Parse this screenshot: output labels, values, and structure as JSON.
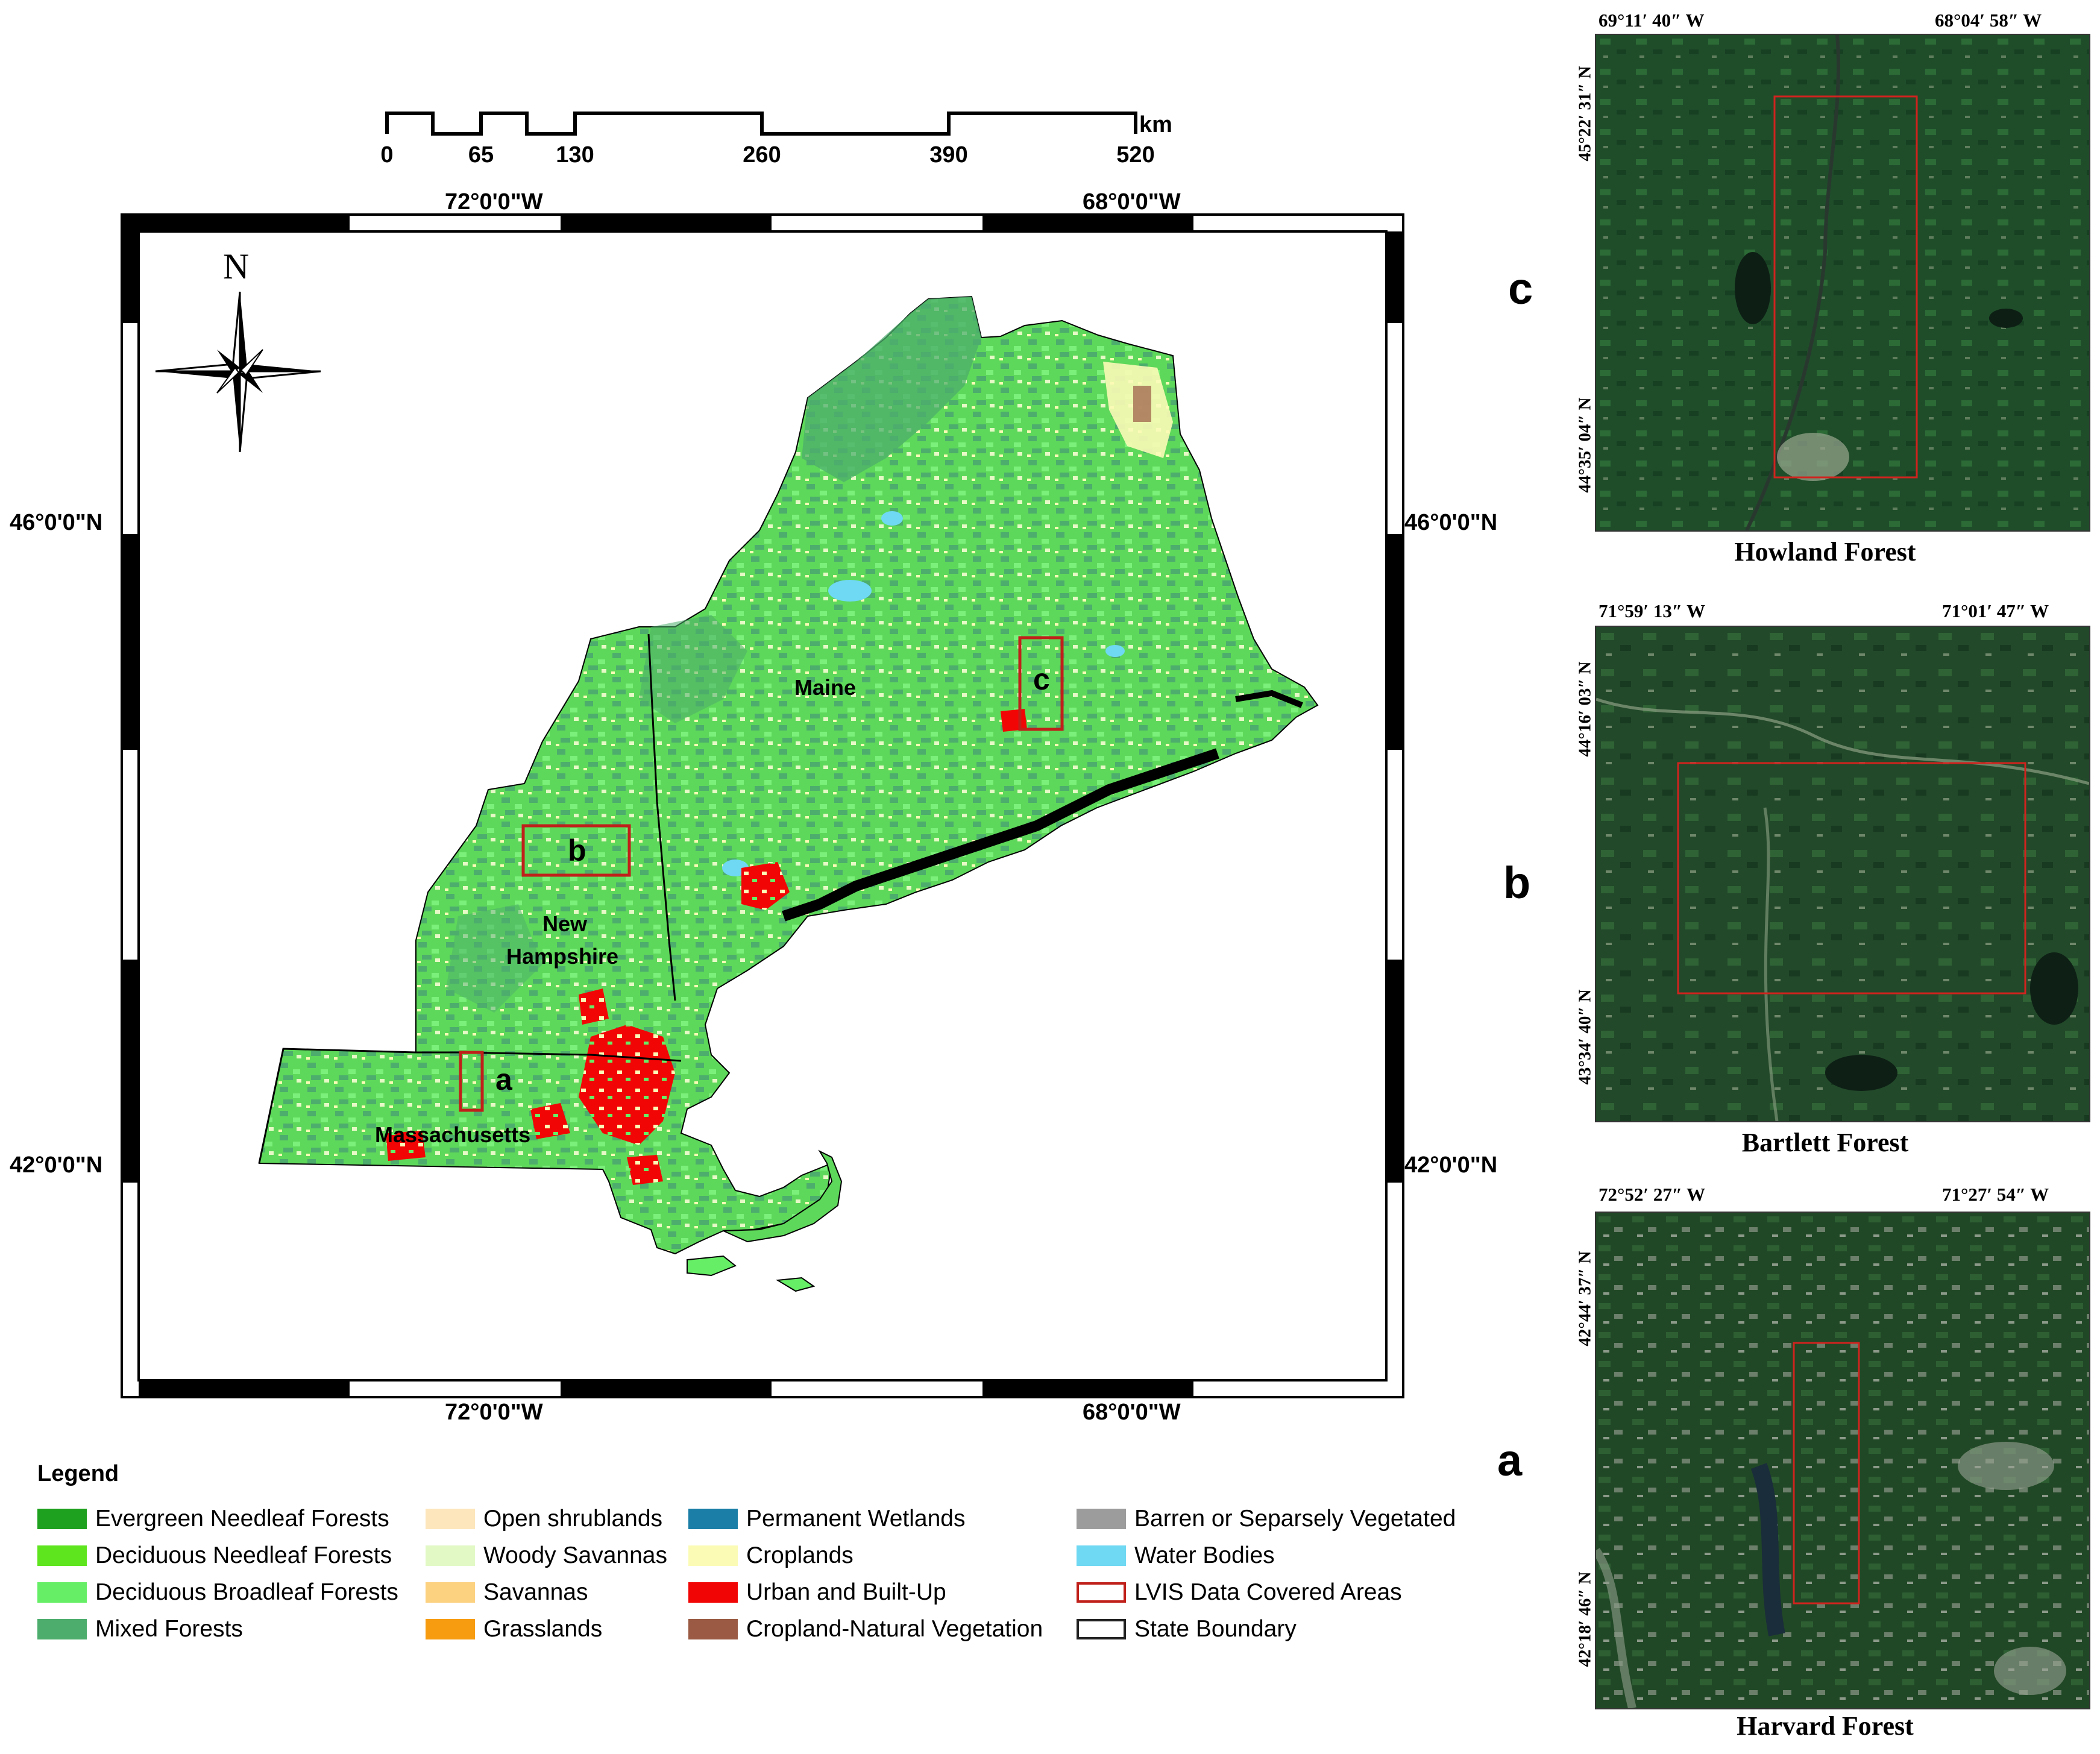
{
  "scale_bar": {
    "labels": [
      "0",
      "65",
      "130",
      "260",
      "390",
      "520"
    ],
    "unit": "km"
  },
  "map_frame": {
    "top_lon_labels": [
      "72°0'0\"W",
      "68°0'0\"W"
    ],
    "bottom_lon_labels": [
      "72°0'0\"W",
      "68°0'0\"W"
    ],
    "left_lat_labels": [
      "46°0'0\"N",
      "42°0'0\"N"
    ],
    "right_lat_labels": [
      "46°0'0\"N",
      "42°0'0\"N"
    ]
  },
  "north_arrow": {
    "label": "N"
  },
  "states": {
    "maine": "Maine",
    "new_hampshire_line1": "New",
    "new_hampshire_line2": "Hampshire",
    "massachusetts": "Massachusetts"
  },
  "study_boxes": {
    "a": "a",
    "b": "b",
    "c": "c"
  },
  "panels": [
    {
      "letter": "c",
      "title": "Howland Forest",
      "lon_left": "69°11′ 40″ W",
      "lon_right": "68°04′ 58″ W",
      "lat_top": "45°22′ 31″ N",
      "lat_bottom": "44°35′ 04″ N"
    },
    {
      "letter": "b",
      "title": "Bartlett Forest",
      "lon_left": "71°59′ 13″ W",
      "lon_right": "71°01′ 47″ W",
      "lat_top": "44°16′ 03″ N",
      "lat_bottom": "43°34′ 40″ N"
    },
    {
      "letter": "a",
      "title": "Harvard Forest",
      "lon_left": "72°52′ 27″ W",
      "lon_right": "71°27′ 54″ W",
      "lat_top": "42°44′ 37″ N",
      "lat_bottom": "42°18′ 46″ N"
    }
  ],
  "legend": {
    "title": "Legend",
    "items": [
      {
        "label": "Evergreen Needleaf Forests",
        "color": "#1ea11e",
        "kind": "fill"
      },
      {
        "label": "Deciduous Needleaf Forests",
        "color": "#5fe51e",
        "kind": "fill"
      },
      {
        "label": "Deciduous Broadleaf Forests",
        "color": "#66ef66",
        "kind": "fill"
      },
      {
        "label": "Mixed Forests",
        "color": "#4cad6c",
        "kind": "fill"
      },
      {
        "label": "Open shrublands",
        "color": "#fde6bc",
        "kind": "fill"
      },
      {
        "label": "Woody Savannas",
        "color": "#e2f9c6",
        "kind": "fill"
      },
      {
        "label": "Savannas",
        "color": "#fcd180",
        "kind": "fill"
      },
      {
        "label": "Grasslands",
        "color": "#f79c10",
        "kind": "fill"
      },
      {
        "label": "Permanent Wetlands",
        "color": "#1a7ea6",
        "kind": "fill"
      },
      {
        "label": "Croplands",
        "color": "#fbfbb6",
        "kind": "fill"
      },
      {
        "label": "Urban and Built-Up",
        "color": "#f20505",
        "kind": "fill"
      },
      {
        "label": "Cropland-Natural Vegetation",
        "color": "#9a5a44",
        "kind": "fill"
      },
      {
        "label": "Barren or Separsely Vegetated",
        "color": "#9c9c9c",
        "kind": "fill"
      },
      {
        "label": "Water Bodies",
        "color": "#6fd8f2",
        "kind": "fill"
      },
      {
        "label": "LVIS Data Covered Areas",
        "color": "#c0201a",
        "kind": "outline"
      },
      {
        "label": "State Boundary",
        "color": "#222222",
        "kind": "outline"
      }
    ]
  }
}
